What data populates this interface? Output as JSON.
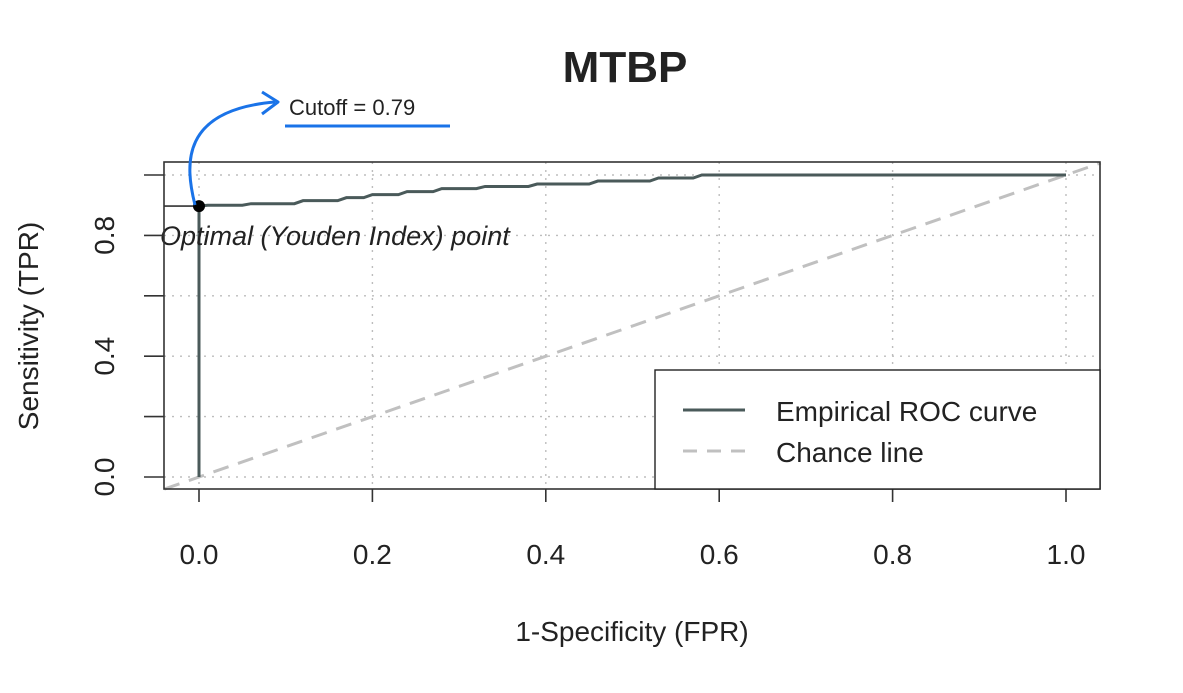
{
  "chart_data": {
    "type": "line",
    "title": "MTBP",
    "xlabel": "1-Specificity (FPR)",
    "ylabel": "Sensitivity (TPR)",
    "xlim": [
      0.0,
      1.0
    ],
    "ylim": [
      0.0,
      1.0
    ],
    "x_ticks": [
      "0.0",
      "0.2",
      "0.4",
      "0.6",
      "0.8",
      "1.0"
    ],
    "y_ticks": [
      "0.0",
      "0.4",
      "0.8"
    ],
    "grid": true,
    "legend_position": "bottom-right",
    "series": [
      {
        "name": "Empirical ROC curve",
        "style": "solid",
        "color": "#4a5a5a",
        "x": [
          0.0,
          0.0,
          0.01,
          0.05,
          0.06,
          0.11,
          0.12,
          0.16,
          0.17,
          0.19,
          0.2,
          0.23,
          0.24,
          0.27,
          0.28,
          0.32,
          0.33,
          0.38,
          0.39,
          0.45,
          0.46,
          0.52,
          0.53,
          0.57,
          0.58,
          1.0
        ],
        "y": [
          0.0,
          0.897,
          0.9,
          0.9,
          0.905,
          0.905,
          0.915,
          0.915,
          0.925,
          0.925,
          0.935,
          0.935,
          0.945,
          0.945,
          0.955,
          0.955,
          0.962,
          0.962,
          0.97,
          0.97,
          0.98,
          0.98,
          0.99,
          0.99,
          1.0,
          1.0
        ]
      },
      {
        "name": "Chance line",
        "style": "dashed",
        "color": "#c0c0c0",
        "x": [
          0.0,
          1.0
        ],
        "y": [
          0.0,
          1.0
        ]
      }
    ],
    "optimal_point": {
      "x": 0.0,
      "y": 0.897,
      "label": "Optimal (Youden Index) point"
    },
    "annotation": {
      "text": "Cutoff = 0.79",
      "arrow_color": "#1a73e8"
    }
  }
}
